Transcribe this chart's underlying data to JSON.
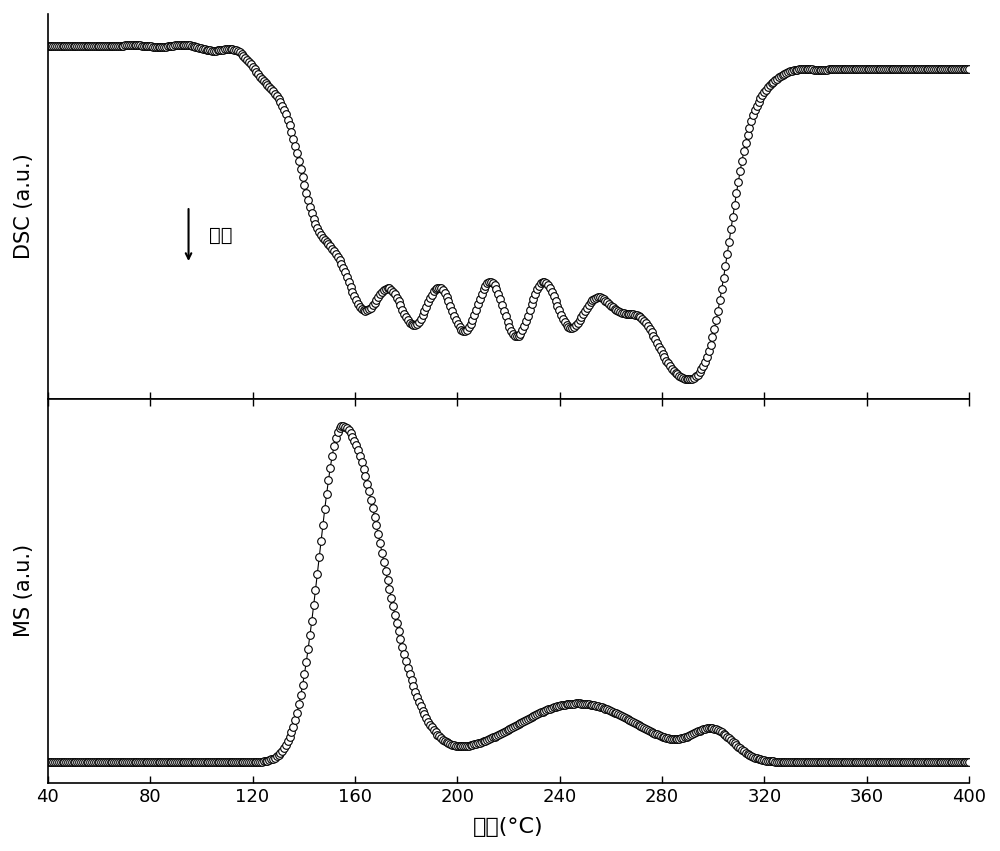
{
  "xlim": [
    40,
    400
  ],
  "xticks": [
    40,
    80,
    120,
    160,
    200,
    240,
    280,
    320,
    360,
    400
  ],
  "xlabel": "温度(°C)",
  "dsc_ylabel": "DSC (a.u.)",
  "ms_ylabel": "MS (a.u.)",
  "annotation_text": "吸热",
  "marker_color": "black",
  "marker_facecolor": "white",
  "marker_size": 5.5,
  "markeredgewidth": 0.8,
  "linewidth": 0.8
}
